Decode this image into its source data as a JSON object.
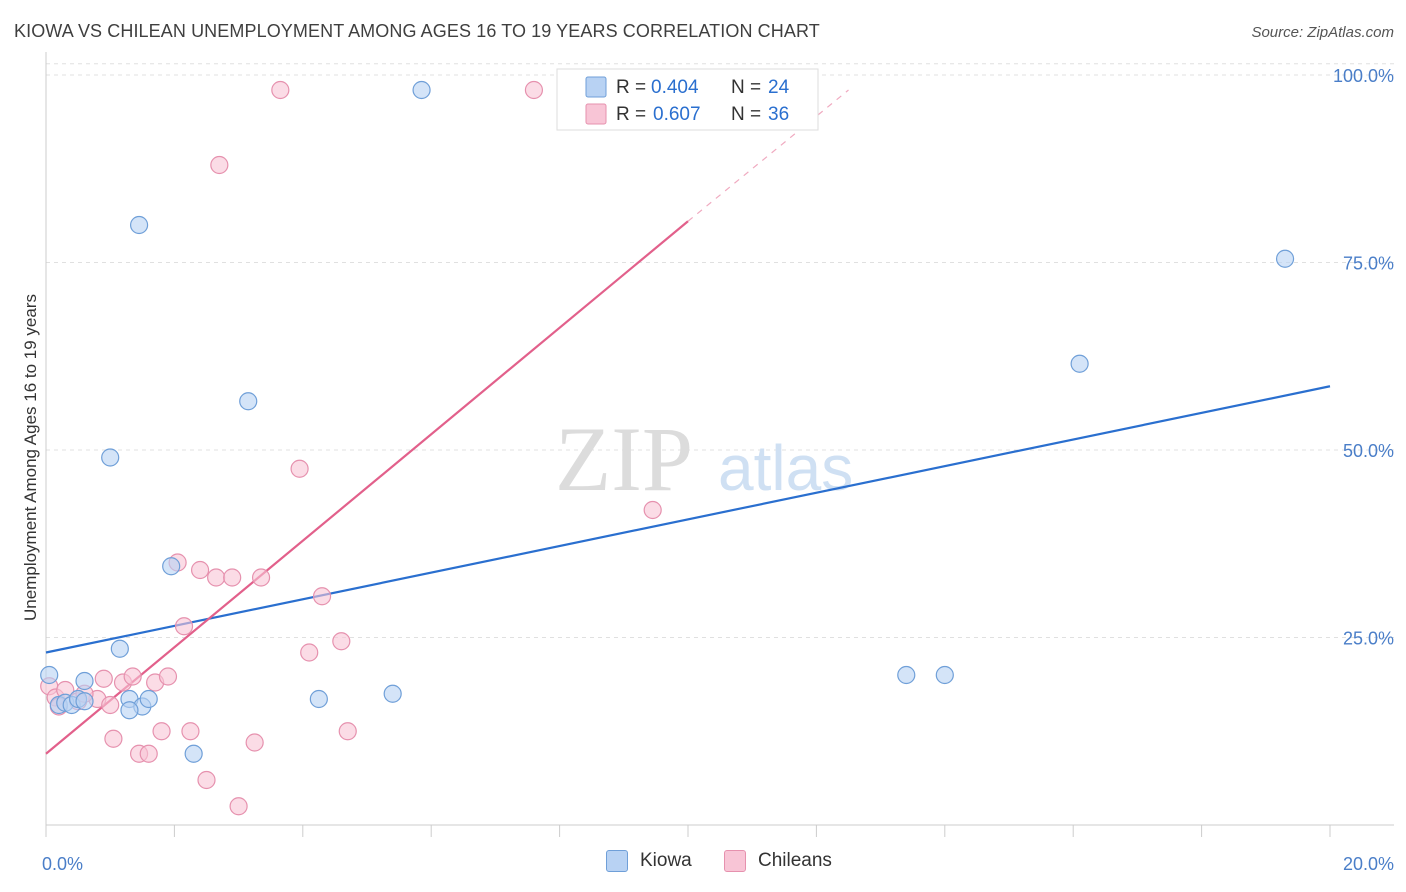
{
  "title": "KIOWA VS CHILEAN UNEMPLOYMENT AMONG AGES 16 TO 19 YEARS CORRELATION CHART",
  "source": "Source: ZipAtlas.com",
  "watermark": {
    "zip": "ZIP",
    "atlas": "atlas"
  },
  "colors": {
    "kiowa_fill": "#b8d2f3",
    "kiowa_stroke": "#6f9fd8",
    "kiowa_line": "#2a6fcf",
    "chileans_fill": "#f8c5d6",
    "chileans_stroke": "#e691ae",
    "chileans_line": "#e2608b",
    "axis_text": "#4a7ec8",
    "grid": "#e0e0e0"
  },
  "legend_top": [
    {
      "r_label": "R =",
      "r_value": "0.404",
      "n_label": "N =",
      "n_value": "24"
    },
    {
      "r_label": "R =",
      "r_value": "0.607",
      "n_label": "N =",
      "n_value": "36"
    }
  ],
  "chart_data": {
    "type": "scatter",
    "title": "KIOWA VS CHILEAN UNEMPLOYMENT AMONG AGES 16 TO 19 YEARS CORRELATION CHART",
    "xlabel": "",
    "ylabel": "Unemployment Among Ages 16 to 19 years",
    "xlim": [
      0,
      20
    ],
    "ylim": [
      0,
      102
    ],
    "x_tick_labels": [
      "0.0%",
      "20.0%"
    ],
    "y_tick_labels": [
      {
        "value": 25,
        "label": "25.0%"
      },
      {
        "value": 50,
        "label": "50.0%"
      },
      {
        "value": 75,
        "label": "75.0%"
      },
      {
        "value": 100,
        "label": "100.0%"
      }
    ],
    "grid": true,
    "series": [
      {
        "name": "Kiowa",
        "points": [
          [
            0.05,
            20.0
          ],
          [
            0.2,
            16.0
          ],
          [
            0.3,
            16.3
          ],
          [
            0.4,
            16.0
          ],
          [
            0.5,
            16.8
          ],
          [
            0.6,
            16.5
          ],
          [
            1.0,
            49.0
          ],
          [
            1.15,
            23.5
          ],
          [
            1.3,
            16.8
          ],
          [
            1.45,
            80.0
          ],
          [
            1.5,
            15.8
          ],
          [
            1.6,
            16.8
          ],
          [
            1.95,
            34.5
          ],
          [
            2.3,
            9.5
          ],
          [
            3.15,
            56.5
          ],
          [
            4.25,
            16.8
          ],
          [
            5.4,
            17.5
          ],
          [
            5.85,
            98.0
          ],
          [
            13.4,
            20.0
          ],
          [
            14.0,
            20.0
          ],
          [
            16.1,
            61.5
          ],
          [
            19.3,
            75.5
          ],
          [
            0.6,
            19.2
          ],
          [
            1.3,
            15.3
          ]
        ],
        "trend": {
          "x": [
            0,
            20
          ],
          "y": [
            23.0,
            58.5
          ]
        }
      },
      {
        "name": "Chileans",
        "points": [
          [
            0.05,
            18.5
          ],
          [
            0.15,
            17.0
          ],
          [
            0.3,
            18.0
          ],
          [
            0.5,
            16.5
          ],
          [
            0.8,
            16.8
          ],
          [
            0.9,
            19.5
          ],
          [
            1.05,
            11.5
          ],
          [
            1.2,
            19.0
          ],
          [
            1.35,
            19.8
          ],
          [
            1.45,
            9.5
          ],
          [
            1.6,
            9.5
          ],
          [
            1.7,
            19.0
          ],
          [
            1.8,
            12.5
          ],
          [
            1.9,
            19.8
          ],
          [
            2.05,
            35.0
          ],
          [
            2.15,
            26.5
          ],
          [
            2.25,
            12.5
          ],
          [
            2.4,
            34.0
          ],
          [
            2.5,
            6.0
          ],
          [
            2.65,
            33.0
          ],
          [
            2.7,
            88.0
          ],
          [
            2.9,
            33.0
          ],
          [
            3.0,
            2.5
          ],
          [
            3.25,
            11.0
          ],
          [
            3.35,
            33.0
          ],
          [
            3.65,
            98.0
          ],
          [
            3.95,
            47.5
          ],
          [
            4.1,
            23.0
          ],
          [
            4.3,
            30.5
          ],
          [
            4.6,
            24.5
          ],
          [
            4.7,
            12.5
          ],
          [
            7.6,
            98.0
          ],
          [
            9.45,
            42.0
          ],
          [
            1.0,
            16.0
          ],
          [
            0.2,
            15.8
          ],
          [
            0.6,
            17.5
          ]
        ],
        "trend": {
          "x": [
            0,
            10
          ],
          "y": [
            9.5,
            80.5
          ]
        },
        "trend_extension": {
          "x": [
            10,
            12.5
          ],
          "y": [
            80.5,
            98.0
          ]
        }
      }
    ]
  }
}
